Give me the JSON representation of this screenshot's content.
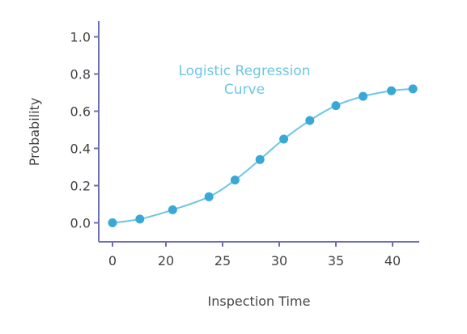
{
  "chart_data": {
    "type": "line",
    "annotation": [
      "Logistic Regression",
      "Curve"
    ],
    "xlabel": "Inspection Time",
    "ylabel": "Probability",
    "x_ticks": [
      {
        "label": "0",
        "value": 0
      },
      {
        "label": "20",
        "value": 20
      },
      {
        "label": "25",
        "value": 25
      },
      {
        "label": "30",
        "value": 30
      },
      {
        "label": "35",
        "value": 35
      },
      {
        "label": "40",
        "value": 40
      }
    ],
    "y_ticks": [
      {
        "label": "0.0",
        "value": 0.0
      },
      {
        "label": "0.2",
        "value": 0.2
      },
      {
        "label": "0.4",
        "value": 0.4
      },
      {
        "label": "0.6",
        "value": 0.6
      },
      {
        "label": "0.8",
        "value": 0.8
      },
      {
        "label": "1.0",
        "value": 1.0
      }
    ],
    "ylim": [
      -0.1,
      1.05
    ],
    "grid": false,
    "colors": {
      "axis": "#6b6fb3",
      "curve": "#6cc6e6",
      "points": "#3aa8d6",
      "annotation": "#6cc6e6",
      "text": "#444444"
    },
    "series": [
      {
        "x": [
          0,
          17.7,
          20.6,
          23.8,
          26.1,
          28.3,
          30.4,
          32.7,
          35.0,
          37.4,
          39.9,
          41.8
        ],
        "y": [
          0.0,
          0.02,
          0.07,
          0.14,
          0.23,
          0.34,
          0.45,
          0.55,
          0.63,
          0.68,
          0.71,
          0.72
        ]
      }
    ]
  }
}
